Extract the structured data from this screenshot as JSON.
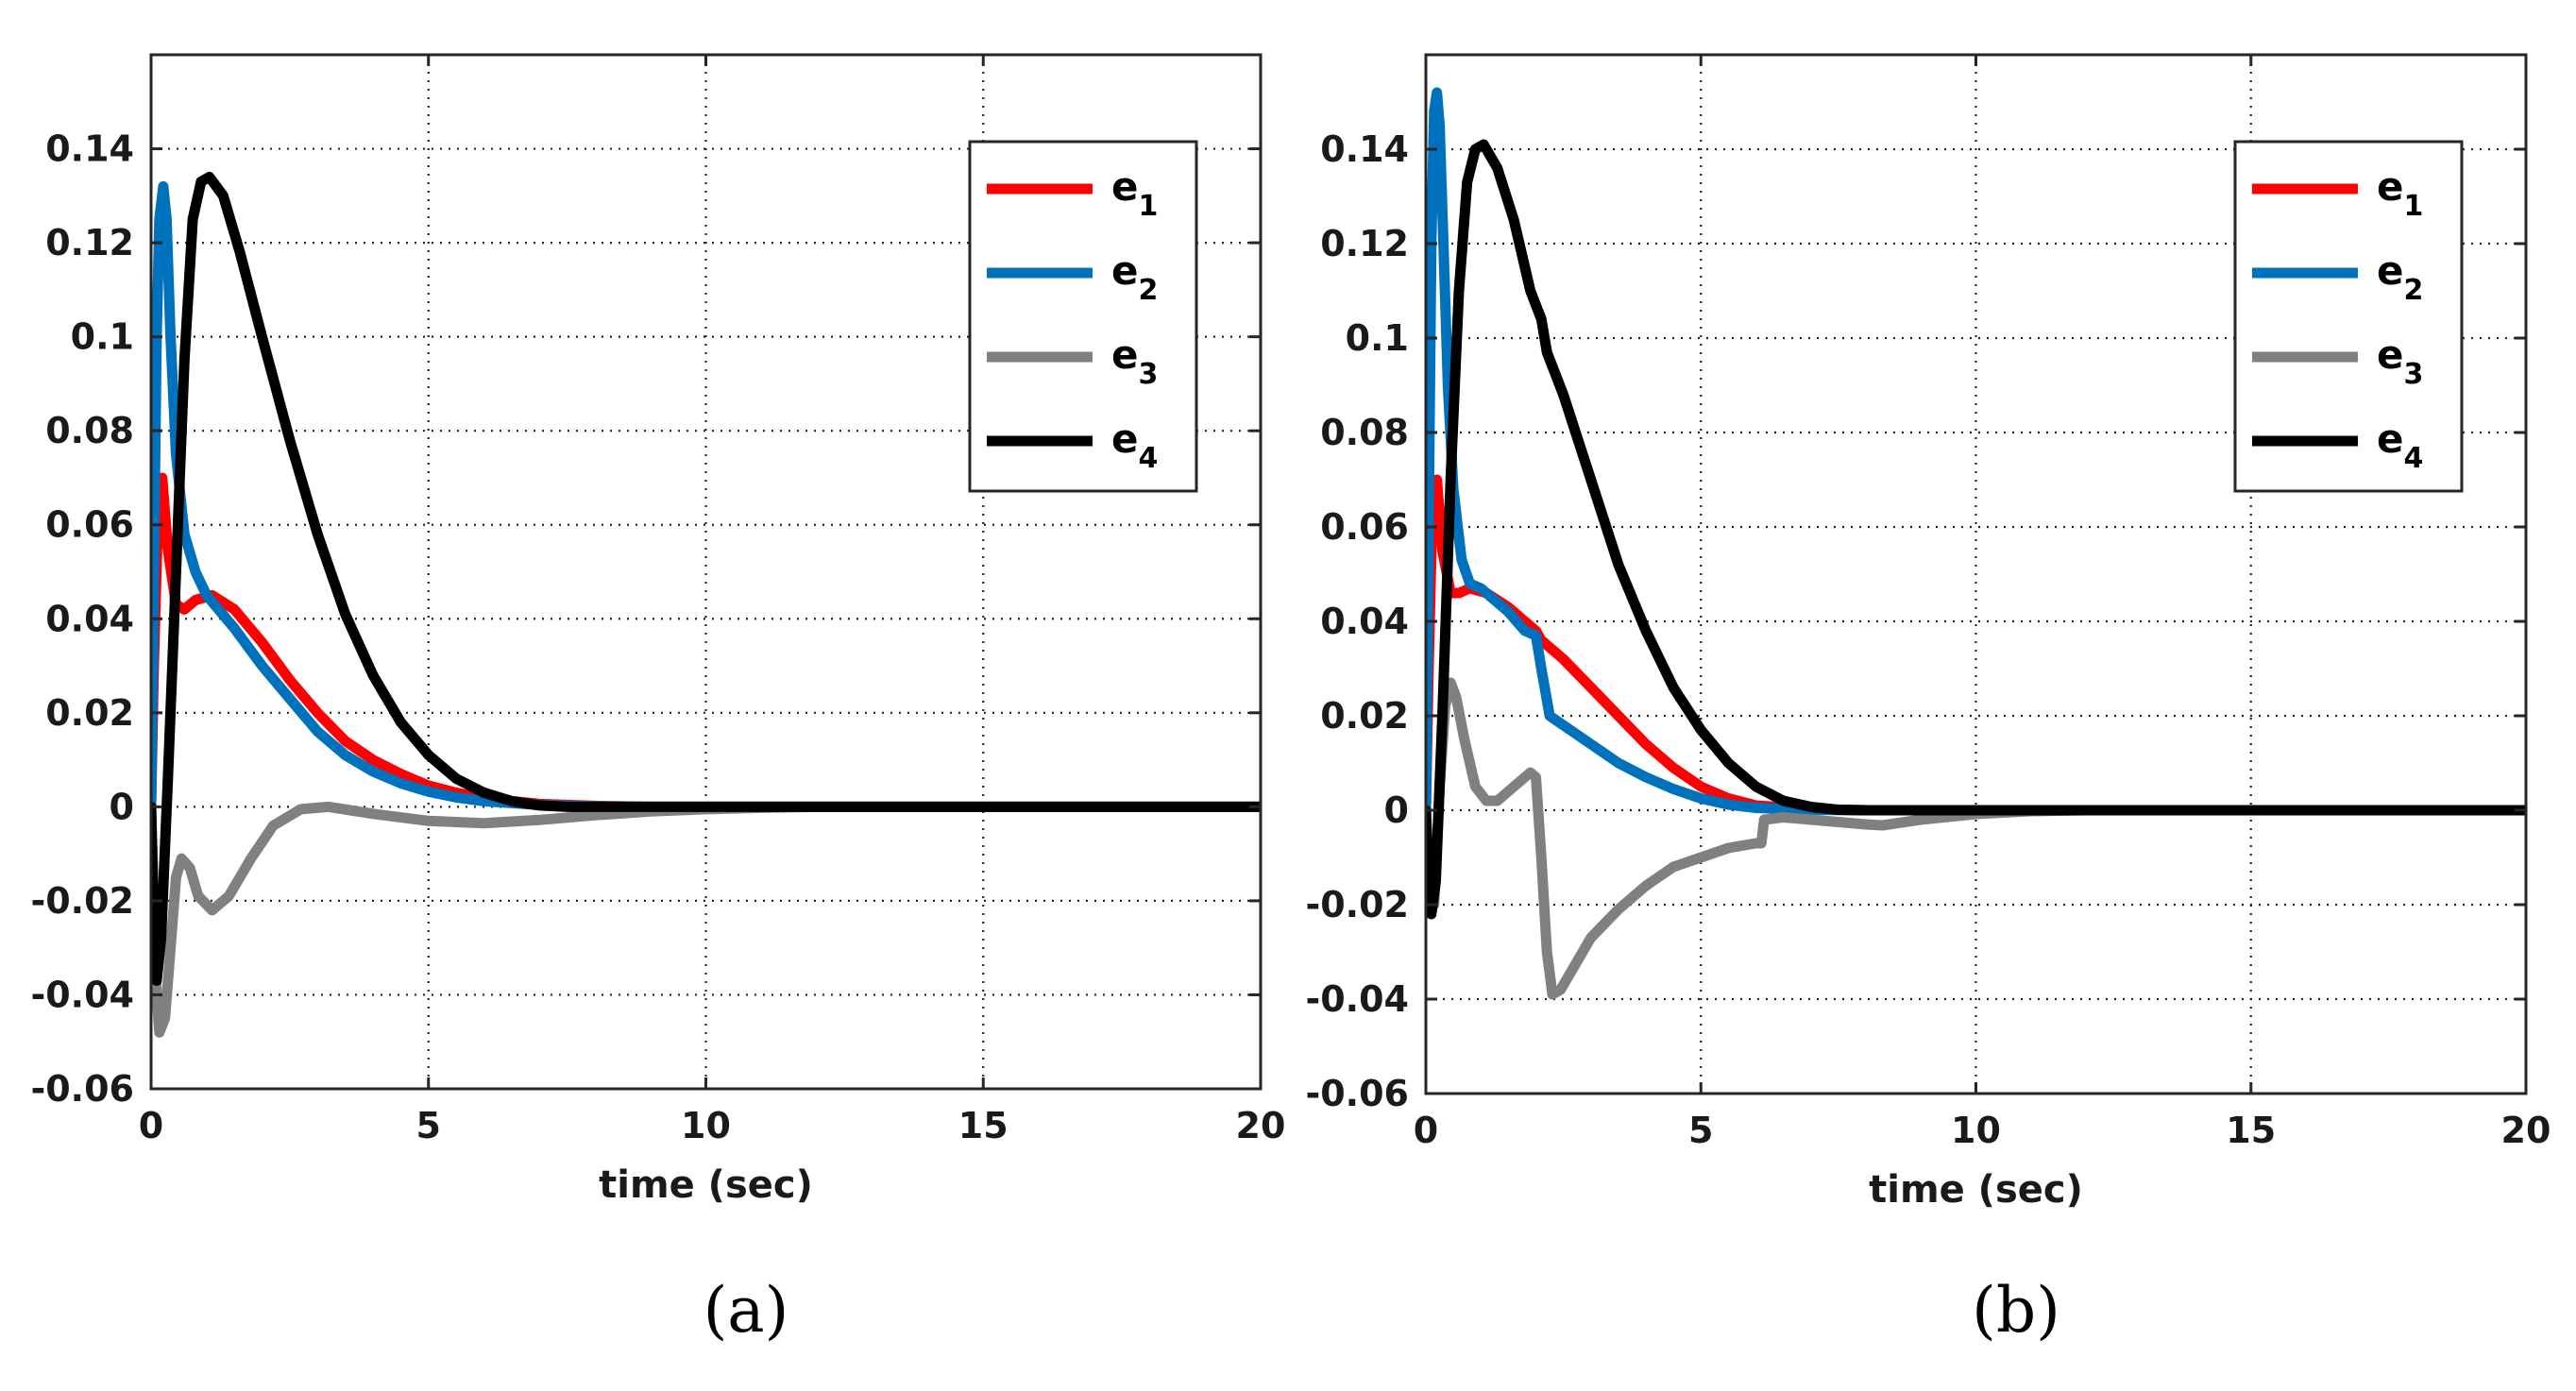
{
  "figure": {
    "panels": [
      "a",
      "b"
    ]
  },
  "chart_data": [
    {
      "type": "line",
      "caption": "(a)",
      "title": "",
      "xlabel": "time (sec)",
      "ylabel": "",
      "xlim": [
        0,
        20
      ],
      "ylim": [
        -0.06,
        0.16
      ],
      "xticks": [
        0,
        5,
        10,
        15,
        20
      ],
      "yticks": [
        -0.06,
        -0.04,
        -0.02,
        0,
        0.02,
        0.04,
        0.06,
        0.08,
        0.1,
        0.12,
        0.14
      ],
      "ytick_labels": [
        "-0.06",
        "-0.04",
        "-0.02",
        "0",
        "0.02",
        "0.04",
        "0.06",
        "0.08",
        "0.1",
        "0.12",
        "0.14"
      ],
      "xtick_labels": [
        "0",
        "5",
        "10",
        "15",
        "20"
      ],
      "grid": true,
      "legend_position": "top-right",
      "series": [
        {
          "name": "e",
          "sub": "1",
          "color": "#ff0000",
          "points": [
            [
              0,
              0
            ],
            [
              0.05,
              0.03
            ],
            [
              0.12,
              0.06
            ],
            [
              0.2,
              0.07
            ],
            [
              0.3,
              0.055
            ],
            [
              0.45,
              0.043
            ],
            [
              0.6,
              0.042
            ],
            [
              0.8,
              0.044
            ],
            [
              1.1,
              0.045
            ],
            [
              1.5,
              0.042
            ],
            [
              2,
              0.035
            ],
            [
              2.5,
              0.027
            ],
            [
              3,
              0.02
            ],
            [
              3.5,
              0.014
            ],
            [
              4,
              0.01
            ],
            [
              4.5,
              0.007
            ],
            [
              5,
              0.0045
            ],
            [
              5.5,
              0.003
            ],
            [
              6,
              0.0018
            ],
            [
              7,
              0.0006
            ],
            [
              8,
              0.0002
            ],
            [
              9,
              0
            ],
            [
              20,
              0
            ]
          ]
        },
        {
          "name": "e",
          "sub": "2",
          "color": "#0072bd",
          "points": [
            [
              0,
              0
            ],
            [
              0.05,
              0.05
            ],
            [
              0.1,
              0.1
            ],
            [
              0.15,
              0.125
            ],
            [
              0.22,
              0.132
            ],
            [
              0.28,
              0.125
            ],
            [
              0.35,
              0.1
            ],
            [
              0.45,
              0.075
            ],
            [
              0.6,
              0.058
            ],
            [
              0.8,
              0.05
            ],
            [
              1,
              0.045
            ],
            [
              1.5,
              0.038
            ],
            [
              2,
              0.03
            ],
            [
              2.5,
              0.023
            ],
            [
              3,
              0.016
            ],
            [
              3.5,
              0.011
            ],
            [
              4,
              0.0075
            ],
            [
              4.5,
              0.005
            ],
            [
              5,
              0.0032
            ],
            [
              5.5,
              0.002
            ],
            [
              6,
              0.0012
            ],
            [
              7,
              0.0004
            ],
            [
              8,
              0.0001
            ],
            [
              9,
              0
            ],
            [
              20,
              0
            ]
          ]
        },
        {
          "name": "e",
          "sub": "3",
          "color": "#808080",
          "points": [
            [
              0,
              0
            ],
            [
              0.05,
              -0.02
            ],
            [
              0.1,
              -0.04
            ],
            [
              0.15,
              -0.048
            ],
            [
              0.25,
              -0.045
            ],
            [
              0.35,
              -0.03
            ],
            [
              0.45,
              -0.015
            ],
            [
              0.55,
              -0.011
            ],
            [
              0.7,
              -0.013
            ],
            [
              0.85,
              -0.019
            ],
            [
              1.1,
              -0.022
            ],
            [
              1.4,
              -0.019
            ],
            [
              1.8,
              -0.011
            ],
            [
              2.2,
              -0.004
            ],
            [
              2.7,
              -0.0005
            ],
            [
              3.2,
              0
            ],
            [
              4,
              -0.0015
            ],
            [
              5,
              -0.003
            ],
            [
              6,
              -0.0035
            ],
            [
              7,
              -0.0028
            ],
            [
              8,
              -0.0018
            ],
            [
              9,
              -0.001
            ],
            [
              10,
              -0.0005
            ],
            [
              11,
              -0.0002
            ],
            [
              12,
              0
            ],
            [
              20,
              0
            ]
          ]
        },
        {
          "name": "e",
          "sub": "4",
          "color": "#000000",
          "points": [
            [
              0,
              0
            ],
            [
              0.05,
              -0.025
            ],
            [
              0.1,
              -0.037
            ],
            [
              0.18,
              -0.028
            ],
            [
              0.3,
              0.005
            ],
            [
              0.45,
              0.05
            ],
            [
              0.6,
              0.095
            ],
            [
              0.75,
              0.125
            ],
            [
              0.9,
              0.133
            ],
            [
              1.05,
              0.134
            ],
            [
              1.3,
              0.13
            ],
            [
              1.6,
              0.118
            ],
            [
              2,
              0.1
            ],
            [
              2.5,
              0.078
            ],
            [
              3,
              0.058
            ],
            [
              3.5,
              0.041
            ],
            [
              4,
              0.028
            ],
            [
              4.5,
              0.018
            ],
            [
              5,
              0.011
            ],
            [
              5.5,
              0.006
            ],
            [
              6,
              0.003
            ],
            [
              6.5,
              0.0012
            ],
            [
              7,
              0.0003
            ],
            [
              7.5,
              0
            ],
            [
              20,
              0
            ]
          ]
        }
      ]
    },
    {
      "type": "line",
      "caption": "(b)",
      "title": "",
      "xlabel": "time (sec)",
      "ylabel": "",
      "xlim": [
        0,
        20
      ],
      "ylim": [
        -0.06,
        0.16
      ],
      "xticks": [
        0,
        5,
        10,
        15,
        20
      ],
      "yticks": [
        -0.06,
        -0.04,
        -0.02,
        0,
        0.02,
        0.04,
        0.06,
        0.08,
        0.1,
        0.12,
        0.14
      ],
      "ytick_labels": [
        "-0.06",
        "-0.04",
        "-0.02",
        "0",
        "0.02",
        "0.04",
        "0.06",
        "0.08",
        "0.1",
        "0.12",
        "0.14"
      ],
      "xtick_labels": [
        "0",
        "5",
        "10",
        "15",
        "20"
      ],
      "grid": true,
      "legend_position": "top-right",
      "series": [
        {
          "name": "e",
          "sub": "1",
          "color": "#ff0000",
          "points": [
            [
              0,
              0
            ],
            [
              0.05,
              0.03
            ],
            [
              0.12,
              0.065
            ],
            [
              0.2,
              0.07
            ],
            [
              0.3,
              0.055
            ],
            [
              0.45,
              0.046
            ],
            [
              0.6,
              0.046
            ],
            [
              0.8,
              0.047
            ],
            [
              1.1,
              0.046
            ],
            [
              1.5,
              0.043
            ],
            [
              1.8,
              0.04
            ],
            [
              2,
              0.038
            ],
            [
              2.1,
              0.036
            ],
            [
              2.5,
              0.032
            ],
            [
              3,
              0.026
            ],
            [
              3.5,
              0.02
            ],
            [
              4,
              0.014
            ],
            [
              4.5,
              0.009
            ],
            [
              5,
              0.005
            ],
            [
              5.5,
              0.0025
            ],
            [
              6,
              0.001
            ],
            [
              7,
              0.0002
            ],
            [
              8,
              0
            ],
            [
              20,
              0
            ]
          ]
        },
        {
          "name": "e",
          "sub": "2",
          "color": "#0072bd",
          "points": [
            [
              0,
              0
            ],
            [
              0.05,
              0.06
            ],
            [
              0.1,
              0.12
            ],
            [
              0.15,
              0.148
            ],
            [
              0.2,
              0.152
            ],
            [
              0.25,
              0.145
            ],
            [
              0.32,
              0.12
            ],
            [
              0.4,
              0.09
            ],
            [
              0.5,
              0.068
            ],
            [
              0.65,
              0.053
            ],
            [
              0.8,
              0.048
            ],
            [
              1,
              0.047
            ],
            [
              1.5,
              0.042
            ],
            [
              1.8,
              0.038
            ],
            [
              2,
              0.037
            ],
            [
              2.1,
              0.03
            ],
            [
              2.25,
              0.02
            ],
            [
              2.5,
              0.018
            ],
            [
              3,
              0.014
            ],
            [
              3.5,
              0.01
            ],
            [
              4,
              0.007
            ],
            [
              4.5,
              0.0045
            ],
            [
              5,
              0.0025
            ],
            [
              5.5,
              0.0012
            ],
            [
              6,
              0.0005
            ],
            [
              7,
              0.0001
            ],
            [
              8,
              0
            ],
            [
              20,
              0
            ]
          ]
        },
        {
          "name": "e",
          "sub": "3",
          "color": "#808080",
          "points": [
            [
              0,
              0
            ],
            [
              0.05,
              -0.012
            ],
            [
              0.1,
              -0.02
            ],
            [
              0.15,
              -0.02
            ],
            [
              0.25,
              0.005
            ],
            [
              0.35,
              0.022
            ],
            [
              0.45,
              0.027
            ],
            [
              0.55,
              0.024
            ],
            [
              0.7,
              0.015
            ],
            [
              0.9,
              0.005
            ],
            [
              1.1,
              0.002
            ],
            [
              1.3,
              0.002
            ],
            [
              1.6,
              0.005
            ],
            [
              1.9,
              0.008
            ],
            [
              2,
              0.007
            ],
            [
              2.1,
              -0.01
            ],
            [
              2.2,
              -0.03
            ],
            [
              2.3,
              -0.039
            ],
            [
              2.45,
              -0.038
            ],
            [
              2.7,
              -0.033
            ],
            [
              3,
              -0.027
            ],
            [
              3.5,
              -0.021
            ],
            [
              4,
              -0.016
            ],
            [
              4.5,
              -0.012
            ],
            [
              5,
              -0.01
            ],
            [
              5.5,
              -0.008
            ],
            [
              6,
              -0.007
            ],
            [
              6.1,
              -0.007
            ],
            [
              6.15,
              -0.002
            ],
            [
              6.5,
              -0.0015
            ],
            [
              7,
              -0.002
            ],
            [
              7.5,
              -0.0025
            ],
            [
              8,
              -0.003
            ],
            [
              8.3,
              -0.0032
            ],
            [
              9,
              -0.002
            ],
            [
              10,
              -0.0008
            ],
            [
              11,
              -0.0002
            ],
            [
              12,
              0
            ],
            [
              20,
              0
            ]
          ]
        },
        {
          "name": "e",
          "sub": "4",
          "color": "#000000",
          "points": [
            [
              0,
              0
            ],
            [
              0.05,
              -0.015
            ],
            [
              0.1,
              -0.022
            ],
            [
              0.18,
              -0.015
            ],
            [
              0.3,
              0.02
            ],
            [
              0.45,
              0.07
            ],
            [
              0.6,
              0.11
            ],
            [
              0.75,
              0.133
            ],
            [
              0.9,
              0.14
            ],
            [
              1.05,
              0.141
            ],
            [
              1.3,
              0.136
            ],
            [
              1.6,
              0.125
            ],
            [
              1.9,
              0.11
            ],
            [
              2.1,
              0.104
            ],
            [
              2.2,
              0.097
            ],
            [
              2.5,
              0.088
            ],
            [
              3,
              0.07
            ],
            [
              3.5,
              0.052
            ],
            [
              4,
              0.038
            ],
            [
              4.5,
              0.026
            ],
            [
              5,
              0.017
            ],
            [
              5.5,
              0.01
            ],
            [
              6,
              0.005
            ],
            [
              6.5,
              0.002
            ],
            [
              7,
              0.0007
            ],
            [
              7.5,
              0.0001
            ],
            [
              8,
              0
            ],
            [
              20,
              0
            ]
          ]
        }
      ]
    }
  ]
}
